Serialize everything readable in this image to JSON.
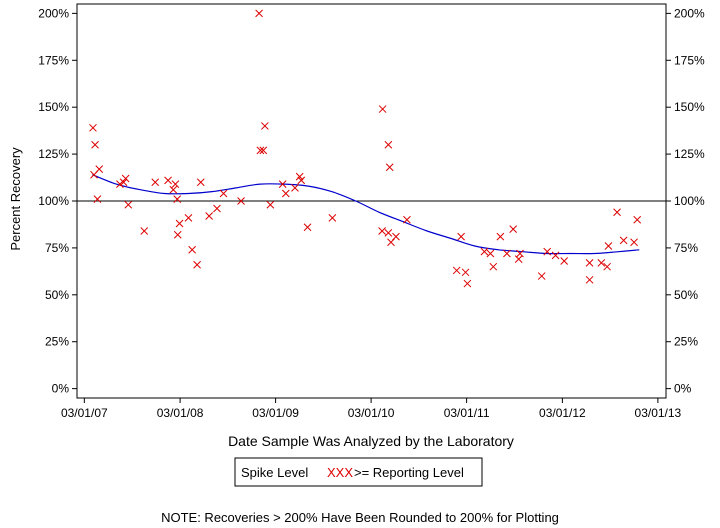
{
  "chart_data": {
    "type": "scatter",
    "title": "",
    "xlabel": "Date Sample Was Analyzed by the Laboratory",
    "ylabel": "Percent Recovery",
    "x_ticks": [
      "03/01/07",
      "03/01/08",
      "03/01/09",
      "03/01/10",
      "03/01/11",
      "03/01/12",
      "03/01/13"
    ],
    "y_ticks": [
      "0%",
      "25%",
      "50%",
      "75%",
      "100%",
      "125%",
      "150%",
      "175%",
      "200%"
    ],
    "y_tick_values": [
      0,
      25,
      50,
      75,
      100,
      125,
      150,
      175,
      200
    ],
    "xlim": [
      "2007-02-01",
      "2013-04-01"
    ],
    "ylim": [
      -5,
      205
    ],
    "reference_line": 100,
    "grid": false,
    "legend": {
      "placement": "bottom-center",
      "label": "Spike Level",
      "marker": "XXX",
      "marker_text": ">= Reporting Level"
    },
    "note": "NOTE: Recoveries > 200% Have Been Rounded to 200% for Plotting",
    "colors": {
      "points": "#dd0000",
      "trend": "#0000cc",
      "axes": "#000000"
    },
    "series": [
      {
        "name": ">= Reporting Level",
        "marker": "x",
        "points": [
          {
            "x": "2007-04-03",
            "y": 139
          },
          {
            "x": "2007-04-07",
            "y": 114
          },
          {
            "x": "2007-04-11",
            "y": 130
          },
          {
            "x": "2007-04-20",
            "y": 101
          },
          {
            "x": "2007-04-27",
            "y": 117
          },
          {
            "x": "2007-07-15",
            "y": 109
          },
          {
            "x": "2007-07-29",
            "y": 110
          },
          {
            "x": "2007-08-06",
            "y": 112
          },
          {
            "x": "2007-08-16",
            "y": 98
          },
          {
            "x": "2007-10-16",
            "y": 84
          },
          {
            "x": "2007-11-27",
            "y": 110
          },
          {
            "x": "2008-01-15",
            "y": 111
          },
          {
            "x": "2008-02-04",
            "y": 106
          },
          {
            "x": "2008-02-12",
            "y": 109
          },
          {
            "x": "2008-02-19",
            "y": 101
          },
          {
            "x": "2008-02-21",
            "y": 82
          },
          {
            "x": "2008-02-28",
            "y": 88
          },
          {
            "x": "2008-04-02",
            "y": 91
          },
          {
            "x": "2008-04-16",
            "y": 74
          },
          {
            "x": "2008-05-05",
            "y": 66
          },
          {
            "x": "2008-05-19",
            "y": 110
          },
          {
            "x": "2008-06-20",
            "y": 92
          },
          {
            "x": "2008-07-20",
            "y": 96
          },
          {
            "x": "2008-08-14",
            "y": 104
          },
          {
            "x": "2008-10-20",
            "y": 100
          },
          {
            "x": "2008-12-28",
            "y": 200
          },
          {
            "x": "2009-01-02",
            "y": 127
          },
          {
            "x": "2009-01-13",
            "y": 127
          },
          {
            "x": "2009-01-19",
            "y": 140
          },
          {
            "x": "2009-02-09",
            "y": 98
          },
          {
            "x": "2009-03-28",
            "y": 109
          },
          {
            "x": "2009-04-09",
            "y": 104
          },
          {
            "x": "2009-05-14",
            "y": 107
          },
          {
            "x": "2009-06-01",
            "y": 113
          },
          {
            "x": "2009-06-07",
            "y": 111
          },
          {
            "x": "2009-07-01",
            "y": 86
          },
          {
            "x": "2009-10-04",
            "y": 91
          },
          {
            "x": "2010-04-12",
            "y": 84
          },
          {
            "x": "2010-04-14",
            "y": 149
          },
          {
            "x": "2010-05-06",
            "y": 130
          },
          {
            "x": "2010-05-11",
            "y": 118
          },
          {
            "x": "2010-05-06",
            "y": 83
          },
          {
            "x": "2010-05-16",
            "y": 78
          },
          {
            "x": "2010-06-04",
            "y": 81
          },
          {
            "x": "2010-07-16",
            "y": 90
          },
          {
            "x": "2011-01-22",
            "y": 63
          },
          {
            "x": "2011-02-08",
            "y": 81
          },
          {
            "x": "2011-02-25",
            "y": 62
          },
          {
            "x": "2011-03-04",
            "y": 56
          },
          {
            "x": "2011-05-08",
            "y": 73
          },
          {
            "x": "2011-05-31",
            "y": 72
          },
          {
            "x": "2011-06-11",
            "y": 65
          },
          {
            "x": "2011-07-08",
            "y": 81
          },
          {
            "x": "2011-08-02",
            "y": 72
          },
          {
            "x": "2011-08-26",
            "y": 85
          },
          {
            "x": "2011-09-16",
            "y": 69
          },
          {
            "x": "2011-09-21",
            "y": 72
          },
          {
            "x": "2011-12-13",
            "y": 60
          },
          {
            "x": "2012-01-03",
            "y": 73
          },
          {
            "x": "2012-02-04",
            "y": 71
          },
          {
            "x": "2012-03-08",
            "y": 68
          },
          {
            "x": "2012-06-13",
            "y": 58
          },
          {
            "x": "2012-06-13",
            "y": 67
          },
          {
            "x": "2012-07-28",
            "y": 67
          },
          {
            "x": "2012-08-19",
            "y": 65
          },
          {
            "x": "2012-08-24",
            "y": 76
          },
          {
            "x": "2012-09-26",
            "y": 94
          },
          {
            "x": "2012-10-21",
            "y": 79
          },
          {
            "x": "2012-11-30",
            "y": 78
          },
          {
            "x": "2012-12-12",
            "y": 90
          }
        ]
      },
      {
        "name": "trend",
        "points": [
          {
            "x": "2007-04-01",
            "y": 114
          },
          {
            "x": "2007-07-01",
            "y": 109
          },
          {
            "x": "2007-10-01",
            "y": 106
          },
          {
            "x": "2008-01-01",
            "y": 104
          },
          {
            "x": "2008-04-01",
            "y": 104
          },
          {
            "x": "2008-07-01",
            "y": 105
          },
          {
            "x": "2008-10-01",
            "y": 107
          },
          {
            "x": "2009-01-01",
            "y": 109
          },
          {
            "x": "2009-04-01",
            "y": 109
          },
          {
            "x": "2009-07-01",
            "y": 108
          },
          {
            "x": "2009-10-01",
            "y": 105
          },
          {
            "x": "2010-01-01",
            "y": 100
          },
          {
            "x": "2010-04-01",
            "y": 94
          },
          {
            "x": "2010-07-01",
            "y": 89
          },
          {
            "x": "2010-10-01",
            "y": 84
          },
          {
            "x": "2011-01-01",
            "y": 80
          },
          {
            "x": "2011-04-01",
            "y": 76
          },
          {
            "x": "2011-07-01",
            "y": 74
          },
          {
            "x": "2011-10-01",
            "y": 73
          },
          {
            "x": "2012-01-01",
            "y": 72
          },
          {
            "x": "2012-04-01",
            "y": 72
          },
          {
            "x": "2012-07-01",
            "y": 72
          },
          {
            "x": "2012-10-01",
            "y": 73
          },
          {
            "x": "2012-12-20",
            "y": 74
          }
        ]
      }
    ]
  }
}
